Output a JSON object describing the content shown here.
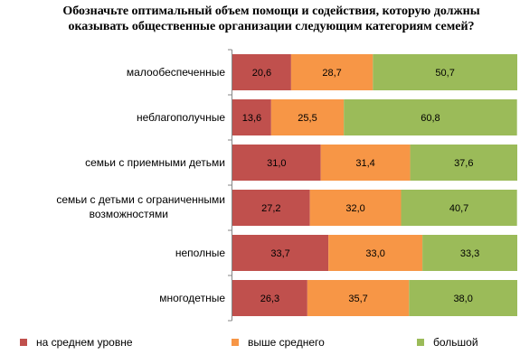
{
  "chart_data": {
    "type": "bar",
    "stacked": true,
    "orientation": "horizontal",
    "title": "Обозначьте оптимальный объем помощи и содействия, которую должны оказывать общественные организации следующим категориям семей?",
    "categories": [
      "малообеспеченные",
      "неблагополучные",
      "семьи с приемными детьми",
      "семьи с детьми с ограниченными возможностями",
      "неполные",
      "многодетные"
    ],
    "series": [
      {
        "name": "на среднем уровне",
        "color": "#c0504d",
        "values": [
          20.6,
          13.6,
          31.0,
          27.2,
          33.7,
          26.3
        ],
        "labels": [
          "20,6",
          "13,6",
          "31,0",
          "27,2",
          "33,7",
          "26,3"
        ]
      },
      {
        "name": "выше среднего",
        "color": "#f79646",
        "values": [
          28.7,
          25.5,
          31.4,
          32.0,
          33.0,
          35.7
        ],
        "labels": [
          "28,7",
          "25,5",
          "31,4",
          "32,0",
          "33,0",
          "35,7"
        ]
      },
      {
        "name": "большой",
        "color": "#9bbb59",
        "values": [
          50.7,
          60.8,
          37.6,
          40.7,
          33.3,
          38.0
        ],
        "labels": [
          "50,7",
          "60,8",
          "37,6",
          "40,7",
          "33,3",
          "38,0"
        ]
      }
    ],
    "xlim": [
      0,
      100
    ],
    "legend_position": "bottom",
    "grid": false
  }
}
